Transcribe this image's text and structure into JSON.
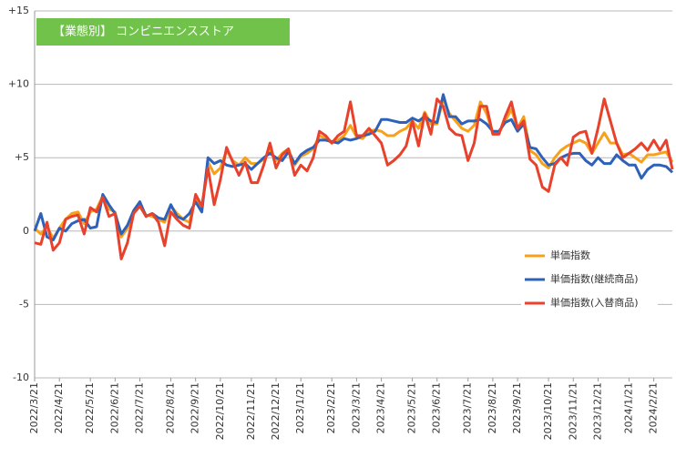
{
  "chart_data": {
    "type": "line",
    "title": "【業態別】 コンビニエンスストア",
    "categories": [
      "2022/3/21",
      null,
      null,
      null,
      "2022/4/21",
      null,
      null,
      null,
      null,
      "2022/5/21",
      null,
      null,
      null,
      "2022/6/21",
      null,
      null,
      null,
      "2022/7/21",
      null,
      null,
      null,
      null,
      "2022/8/21",
      null,
      null,
      null,
      "2022/9/21",
      null,
      null,
      null,
      "2022/10/21",
      null,
      null,
      null,
      null,
      "2022/11/21",
      null,
      null,
      null,
      "2022/12/21",
      null,
      null,
      null,
      "2023/1/21",
      null,
      null,
      null,
      null,
      "2023/2/21",
      null,
      null,
      null,
      "2023/3/21",
      null,
      null,
      null,
      "2023/4/21",
      null,
      null,
      null,
      null,
      "2023/5/21",
      null,
      null,
      null,
      "2023/6/21",
      null,
      null,
      null,
      null,
      "2023/7/21",
      null,
      null,
      null,
      "2023/8/21",
      null,
      null,
      null,
      "2023/9/21",
      null,
      null,
      null,
      null,
      "2023/10/21",
      null,
      null,
      null,
      "2023/11/21",
      null,
      null,
      null,
      "2023/12/21",
      null,
      null,
      null,
      null,
      "2024/1/21",
      null,
      null,
      null,
      "2024/2/21",
      null,
      null,
      null
    ],
    "series": [
      {
        "name": "単価指数",
        "color": "#f7a11a",
        "values": [
          0.2,
          -0.2,
          0.3,
          -0.5,
          0.2,
          0.8,
          1.2,
          1.3,
          0.5,
          1.3,
          1.5,
          2.4,
          1.5,
          1.3,
          -0.4,
          0.2,
          1.2,
          1.8,
          1.1,
          1.0,
          0.8,
          0.6,
          1.7,
          1.2,
          0.8,
          0.6,
          2.3,
          1.6,
          4.7,
          3.9,
          4.3,
          5.5,
          4.8,
          4.5,
          5.0,
          4.6,
          4.6,
          4.9,
          5.5,
          4.8,
          5.3,
          5.6,
          4.5,
          5.1,
          5.3,
          5.6,
          6.5,
          6.3,
          6.0,
          6.2,
          6.5,
          7.2,
          6.4,
          6.3,
          6.8,
          6.9,
          6.8,
          6.5,
          6.5,
          6.8,
          7.0,
          7.5,
          7.0,
          8.1,
          7.3,
          7.3,
          9.0,
          8.0,
          7.5,
          7.0,
          6.8,
          7.2,
          8.8,
          8.0,
          6.7,
          6.7,
          7.5,
          8.3,
          7.0,
          7.8,
          5.5,
          5.2,
          4.6,
          4.3,
          5.0,
          5.5,
          5.8,
          6.0,
          6.2,
          6.0,
          5.3,
          6.0,
          6.7,
          6.0,
          6.0,
          5.2,
          5.3,
          5.0,
          4.7,
          5.2,
          5.2,
          5.3,
          5.4,
          4.7
        ]
      },
      {
        "name": "単価指数(継続商品)",
        "color": "#2e62b8",
        "values": [
          0.0,
          1.2,
          -0.4,
          -0.6,
          0.2,
          0.0,
          0.5,
          0.7,
          0.8,
          0.2,
          0.3,
          2.5,
          1.8,
          1.2,
          -0.2,
          0.4,
          1.4,
          2.0,
          1.0,
          1.2,
          0.9,
          0.8,
          1.8,
          1.0,
          0.8,
          1.2,
          2.0,
          1.3,
          5.0,
          4.6,
          4.8,
          4.5,
          4.4,
          4.5,
          4.6,
          4.2,
          4.6,
          5.0,
          5.3,
          5.0,
          4.8,
          5.4,
          4.6,
          5.2,
          5.5,
          5.7,
          6.2,
          6.2,
          6.1,
          6.0,
          6.3,
          6.2,
          6.3,
          6.5,
          6.6,
          6.8,
          7.6,
          7.6,
          7.5,
          7.4,
          7.4,
          7.7,
          7.5,
          7.8,
          7.5,
          7.4,
          9.3,
          7.8,
          7.8,
          7.3,
          7.5,
          7.5,
          7.6,
          7.3,
          6.8,
          6.8,
          7.4,
          7.6,
          6.8,
          7.3,
          5.7,
          5.6,
          5.0,
          4.5,
          4.6,
          5.0,
          5.2,
          5.3,
          5.3,
          4.8,
          4.5,
          5.0,
          4.6,
          4.6,
          5.2,
          4.8,
          4.5,
          4.5,
          3.6,
          4.2,
          4.5,
          4.5,
          4.4,
          4.0
        ]
      },
      {
        "name": "単価指数(入替商品)",
        "color": "#e8412c",
        "values": [
          -0.8,
          -0.9,
          0.6,
          -1.3,
          -0.8,
          0.8,
          1.0,
          1.1,
          -0.2,
          1.6,
          1.3,
          2.3,
          1.0,
          1.2,
          -1.9,
          -0.8,
          1.2,
          1.7,
          1.0,
          1.2,
          0.6,
          -1.0,
          1.3,
          0.8,
          0.4,
          0.2,
          2.5,
          1.7,
          4.3,
          1.8,
          3.5,
          5.7,
          4.7,
          3.8,
          4.7,
          3.3,
          3.3,
          4.5,
          6.0,
          4.3,
          5.2,
          5.6,
          3.8,
          4.5,
          4.1,
          5.0,
          6.8,
          6.5,
          6.0,
          6.5,
          6.8,
          8.8,
          6.5,
          6.5,
          7.0,
          6.5,
          6.0,
          4.5,
          4.8,
          5.2,
          5.8,
          7.5,
          5.8,
          8.0,
          6.6,
          9.0,
          8.5,
          7.0,
          6.6,
          6.5,
          4.8,
          6.0,
          8.5,
          8.5,
          6.6,
          6.6,
          7.8,
          8.8,
          7.0,
          7.5,
          4.9,
          4.5,
          3.0,
          2.7,
          4.5,
          5.0,
          4.5,
          6.4,
          6.7,
          6.8,
          5.3,
          7.0,
          9.0,
          7.5,
          6.0,
          5.0,
          5.3,
          5.6,
          6.0,
          5.5,
          6.2,
          5.5,
          6.2,
          4.2
        ]
      }
    ],
    "ylim": [
      -10,
      15
    ],
    "yticks": [
      {
        "value": 15,
        "label": "+15"
      },
      {
        "value": 10,
        "label": "+10"
      },
      {
        "value": 5,
        "label": "+5"
      },
      0,
      -5,
      -10
    ],
    "grid": true,
    "legend": "right"
  }
}
